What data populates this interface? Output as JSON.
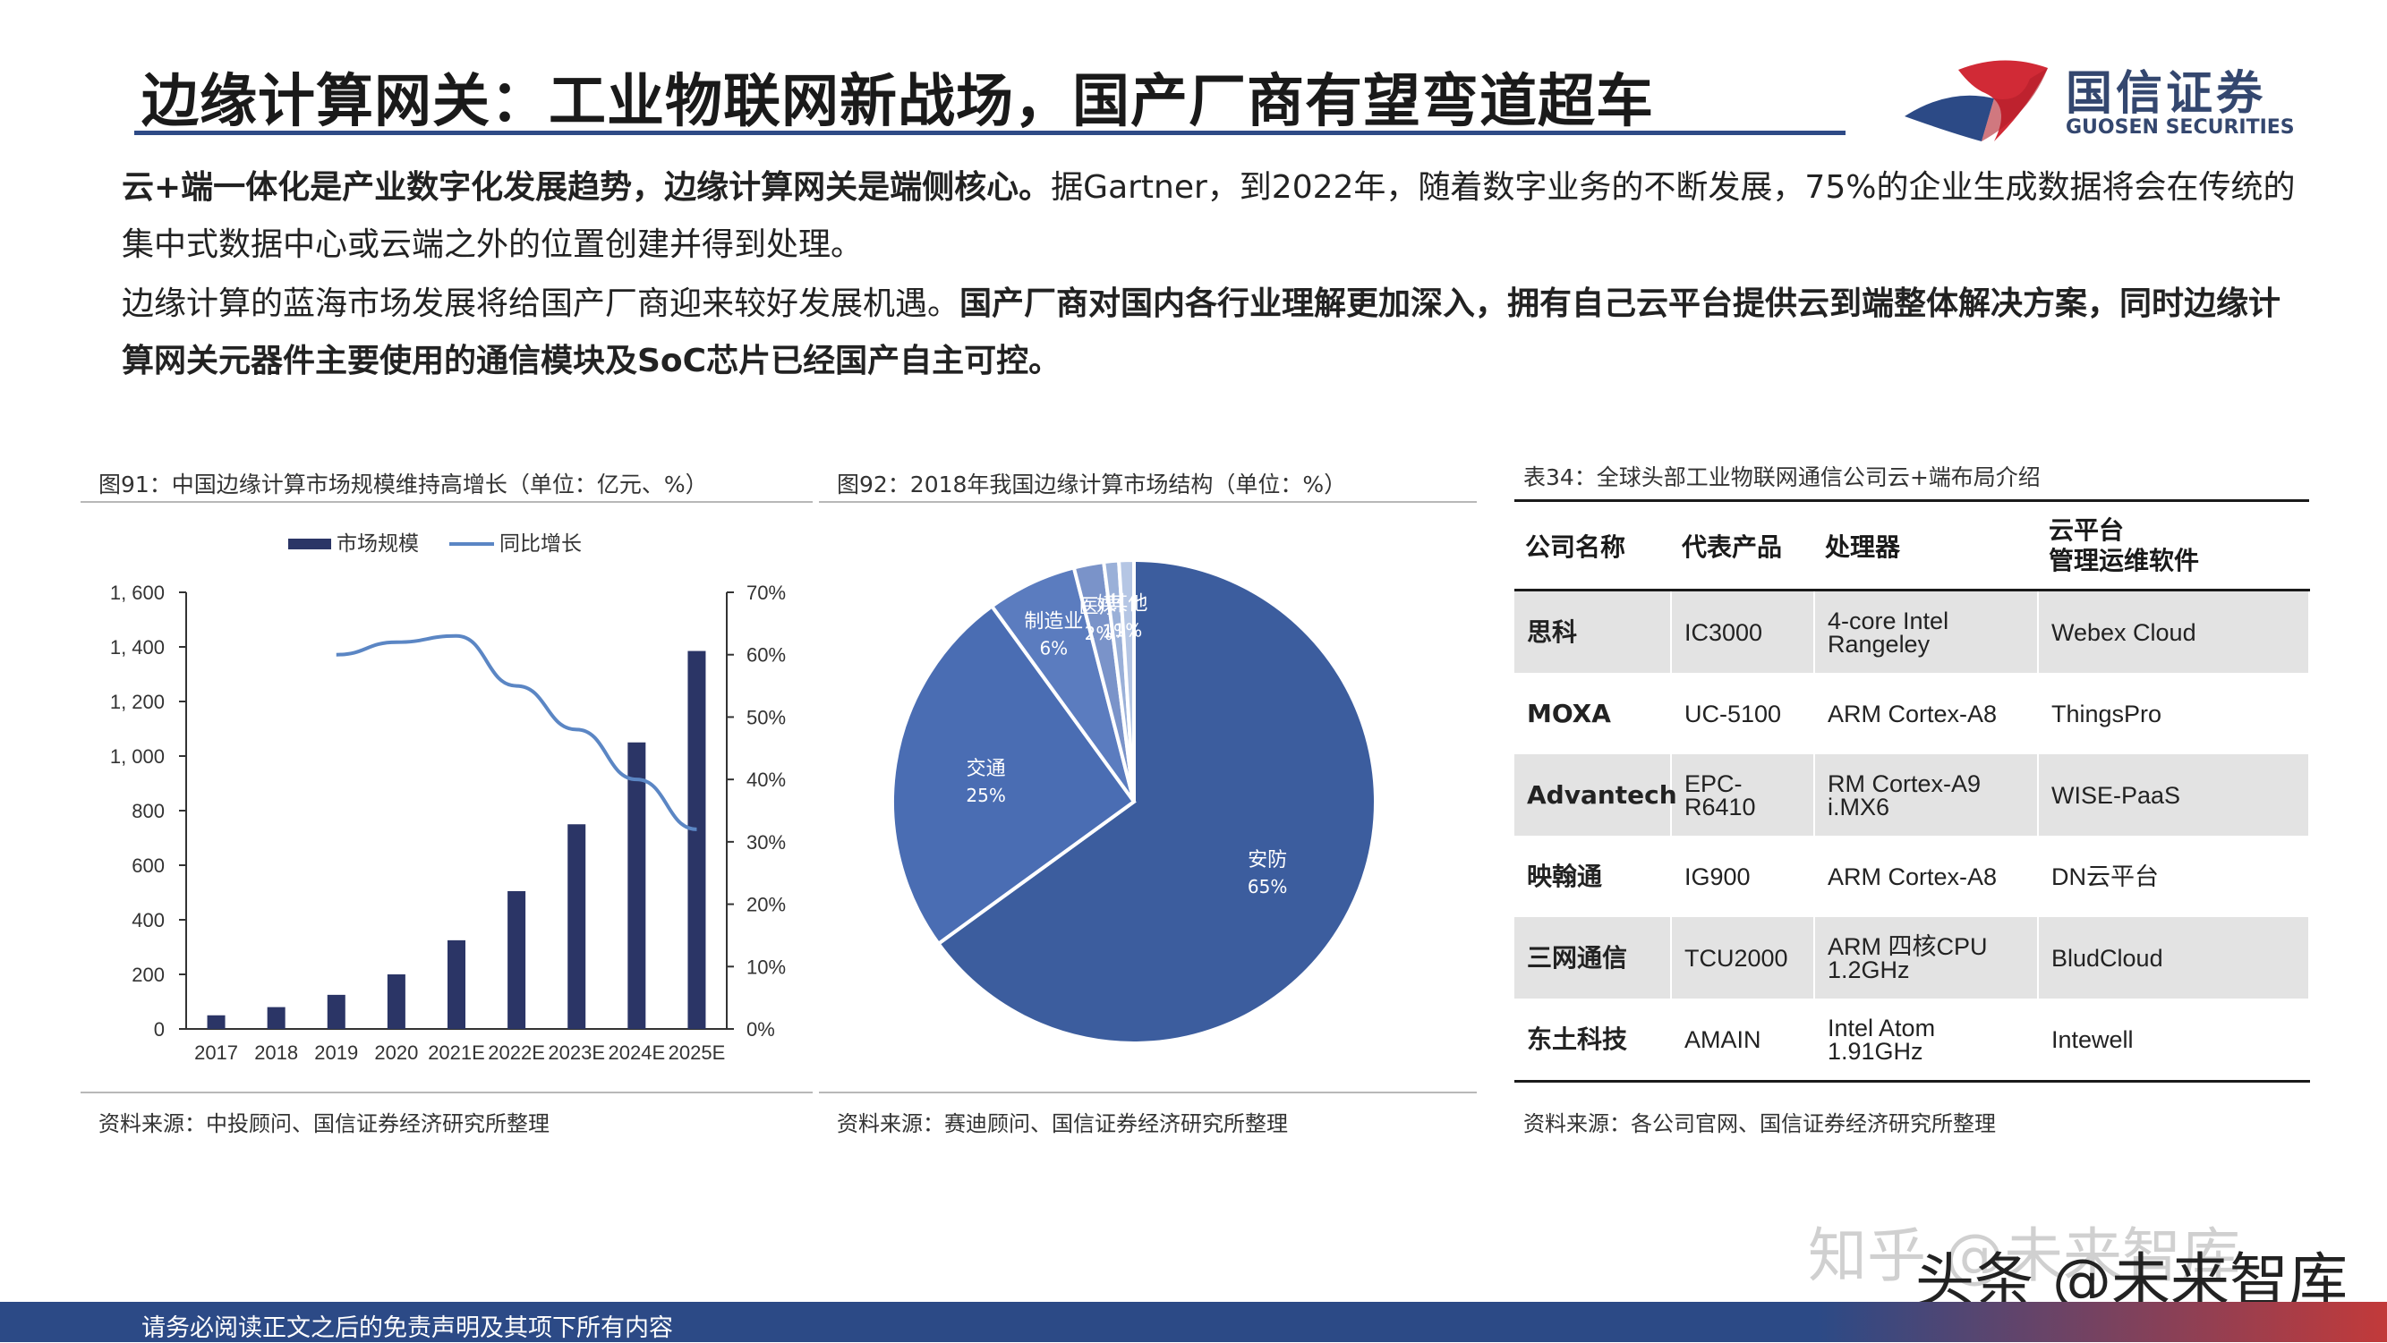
{
  "header": {
    "title": "边缘计算网关：工业物联网新战场，国产厂商有望弯道超车",
    "logo_cn": "国信证券",
    "logo_en": "GUOSEN SECURITIES"
  },
  "paragraphs": {
    "p1_bold": "云+端一体化是产业数字化发展趋势，边缘计算网关是端侧核心。",
    "p1_normal": "据Gartner，到2022年，随着数字业务的不断发展，75%的企业生成数据将会在传统的集中式数据中心或云端之外的位置创建并得到处理。",
    "p2_normal": "边缘计算的蓝海市场发展将给国产厂商迎来较好发展机遇。",
    "p2_bold": "国产厂商对国内各行业理解更加深入，拥有自己云平台提供云到端整体解决方案，同时边缘计算网关元器件主要使用的通信模块及SoC芯片已经国产自主可控。"
  },
  "figure91": {
    "title": "图91：中国边缘计算市场规模维持高增长（单位：亿元、%）",
    "source": "资料来源：中投顾问、国信证券经济研究所整理"
  },
  "figure92": {
    "title": "图92：2018年我国边缘计算市场结构（单位：%）",
    "source": "资料来源：赛迪顾问、国信证券经济研究所整理"
  },
  "chart_data": [
    {
      "type": "bar",
      "categories": [
        "2017",
        "2018",
        "2019",
        "2020",
        "2021E",
        "2022E",
        "2023E",
        "2024E",
        "2025E"
      ],
      "series": [
        {
          "name": "市场规模",
          "type": "bar",
          "axis": "left",
          "color": "#2b3566",
          "values": [
            50,
            80,
            125,
            200,
            325,
            505,
            750,
            1050,
            1385
          ]
        },
        {
          "name": "同比增长",
          "type": "line",
          "axis": "right",
          "color": "#5b86c4",
          "values": [
            null,
            null,
            60,
            62,
            63,
            55,
            48,
            40,
            32
          ]
        }
      ],
      "ylim": [
        0,
        1600
      ],
      "y_ticks": [
        "0",
        "200",
        "400",
        "600",
        "800",
        "1, 000",
        "1, 200",
        "1, 400",
        "1, 600"
      ],
      "y2lim": [
        0,
        70
      ],
      "y2_ticks": [
        "0%",
        "10%",
        "20%",
        "30%",
        "40%",
        "50%",
        "60%",
        "70%"
      ],
      "legend": "top",
      "grid": false
    },
    {
      "type": "pie",
      "slices": [
        {
          "label": "安防",
          "pct_label": "65%",
          "value": 65,
          "color": "#3c5d9e"
        },
        {
          "label": "交通",
          "pct_label": "25%",
          "value": 25,
          "color": "#4a6db3"
        },
        {
          "label": "制造业",
          "pct_label": "6%",
          "value": 6,
          "color": "#5b7cbf"
        },
        {
          "label": "医疗",
          "pct_label": "2%",
          "value": 2,
          "color": "#7a93c9"
        },
        {
          "label": "媒体",
          "pct_label": "1%",
          "value": 1,
          "color": "#9ab0d8"
        },
        {
          "label": "其他",
          "pct_label": "1%",
          "value": 1,
          "color": "#b5c6e4"
        }
      ]
    }
  ],
  "table34": {
    "title": "表34：全球头部工业物联网通信公司云+端布局介绍",
    "headers": [
      "公司名称",
      "代表产品",
      "处理器",
      "云平台\n管理运维软件"
    ],
    "rows": [
      [
        "思科",
        "IC3000",
        "4-core Intel\nRangeley",
        "Webex Cloud"
      ],
      [
        "MOXA",
        "UC-5100",
        "ARM Cortex-A8",
        "ThingsPro"
      ],
      [
        "Advantech",
        "EPC-\nR6410",
        "RM Cortex-A9\ni.MX6",
        "WISE-PaaS"
      ],
      [
        "映翰通",
        "IG900",
        "ARM Cortex-A8",
        "DN云平台"
      ],
      [
        "三网通信",
        "TCU2000",
        "ARM 四核CPU\n1.2GHz",
        "BludCloud"
      ],
      [
        "东土科技",
        "AMAIN",
        "Intel Atom\n1.91GHz",
        "Intewell"
      ]
    ],
    "source": "资料来源：各公司官网、国信证券经济研究所整理"
  },
  "footer": {
    "text": "请务必阅读正文之后的免责声明及其项下所有内容",
    "watermark_zhihu": "知乎 @未来智库",
    "watermark_toutiao": "头条 @未来智库"
  }
}
